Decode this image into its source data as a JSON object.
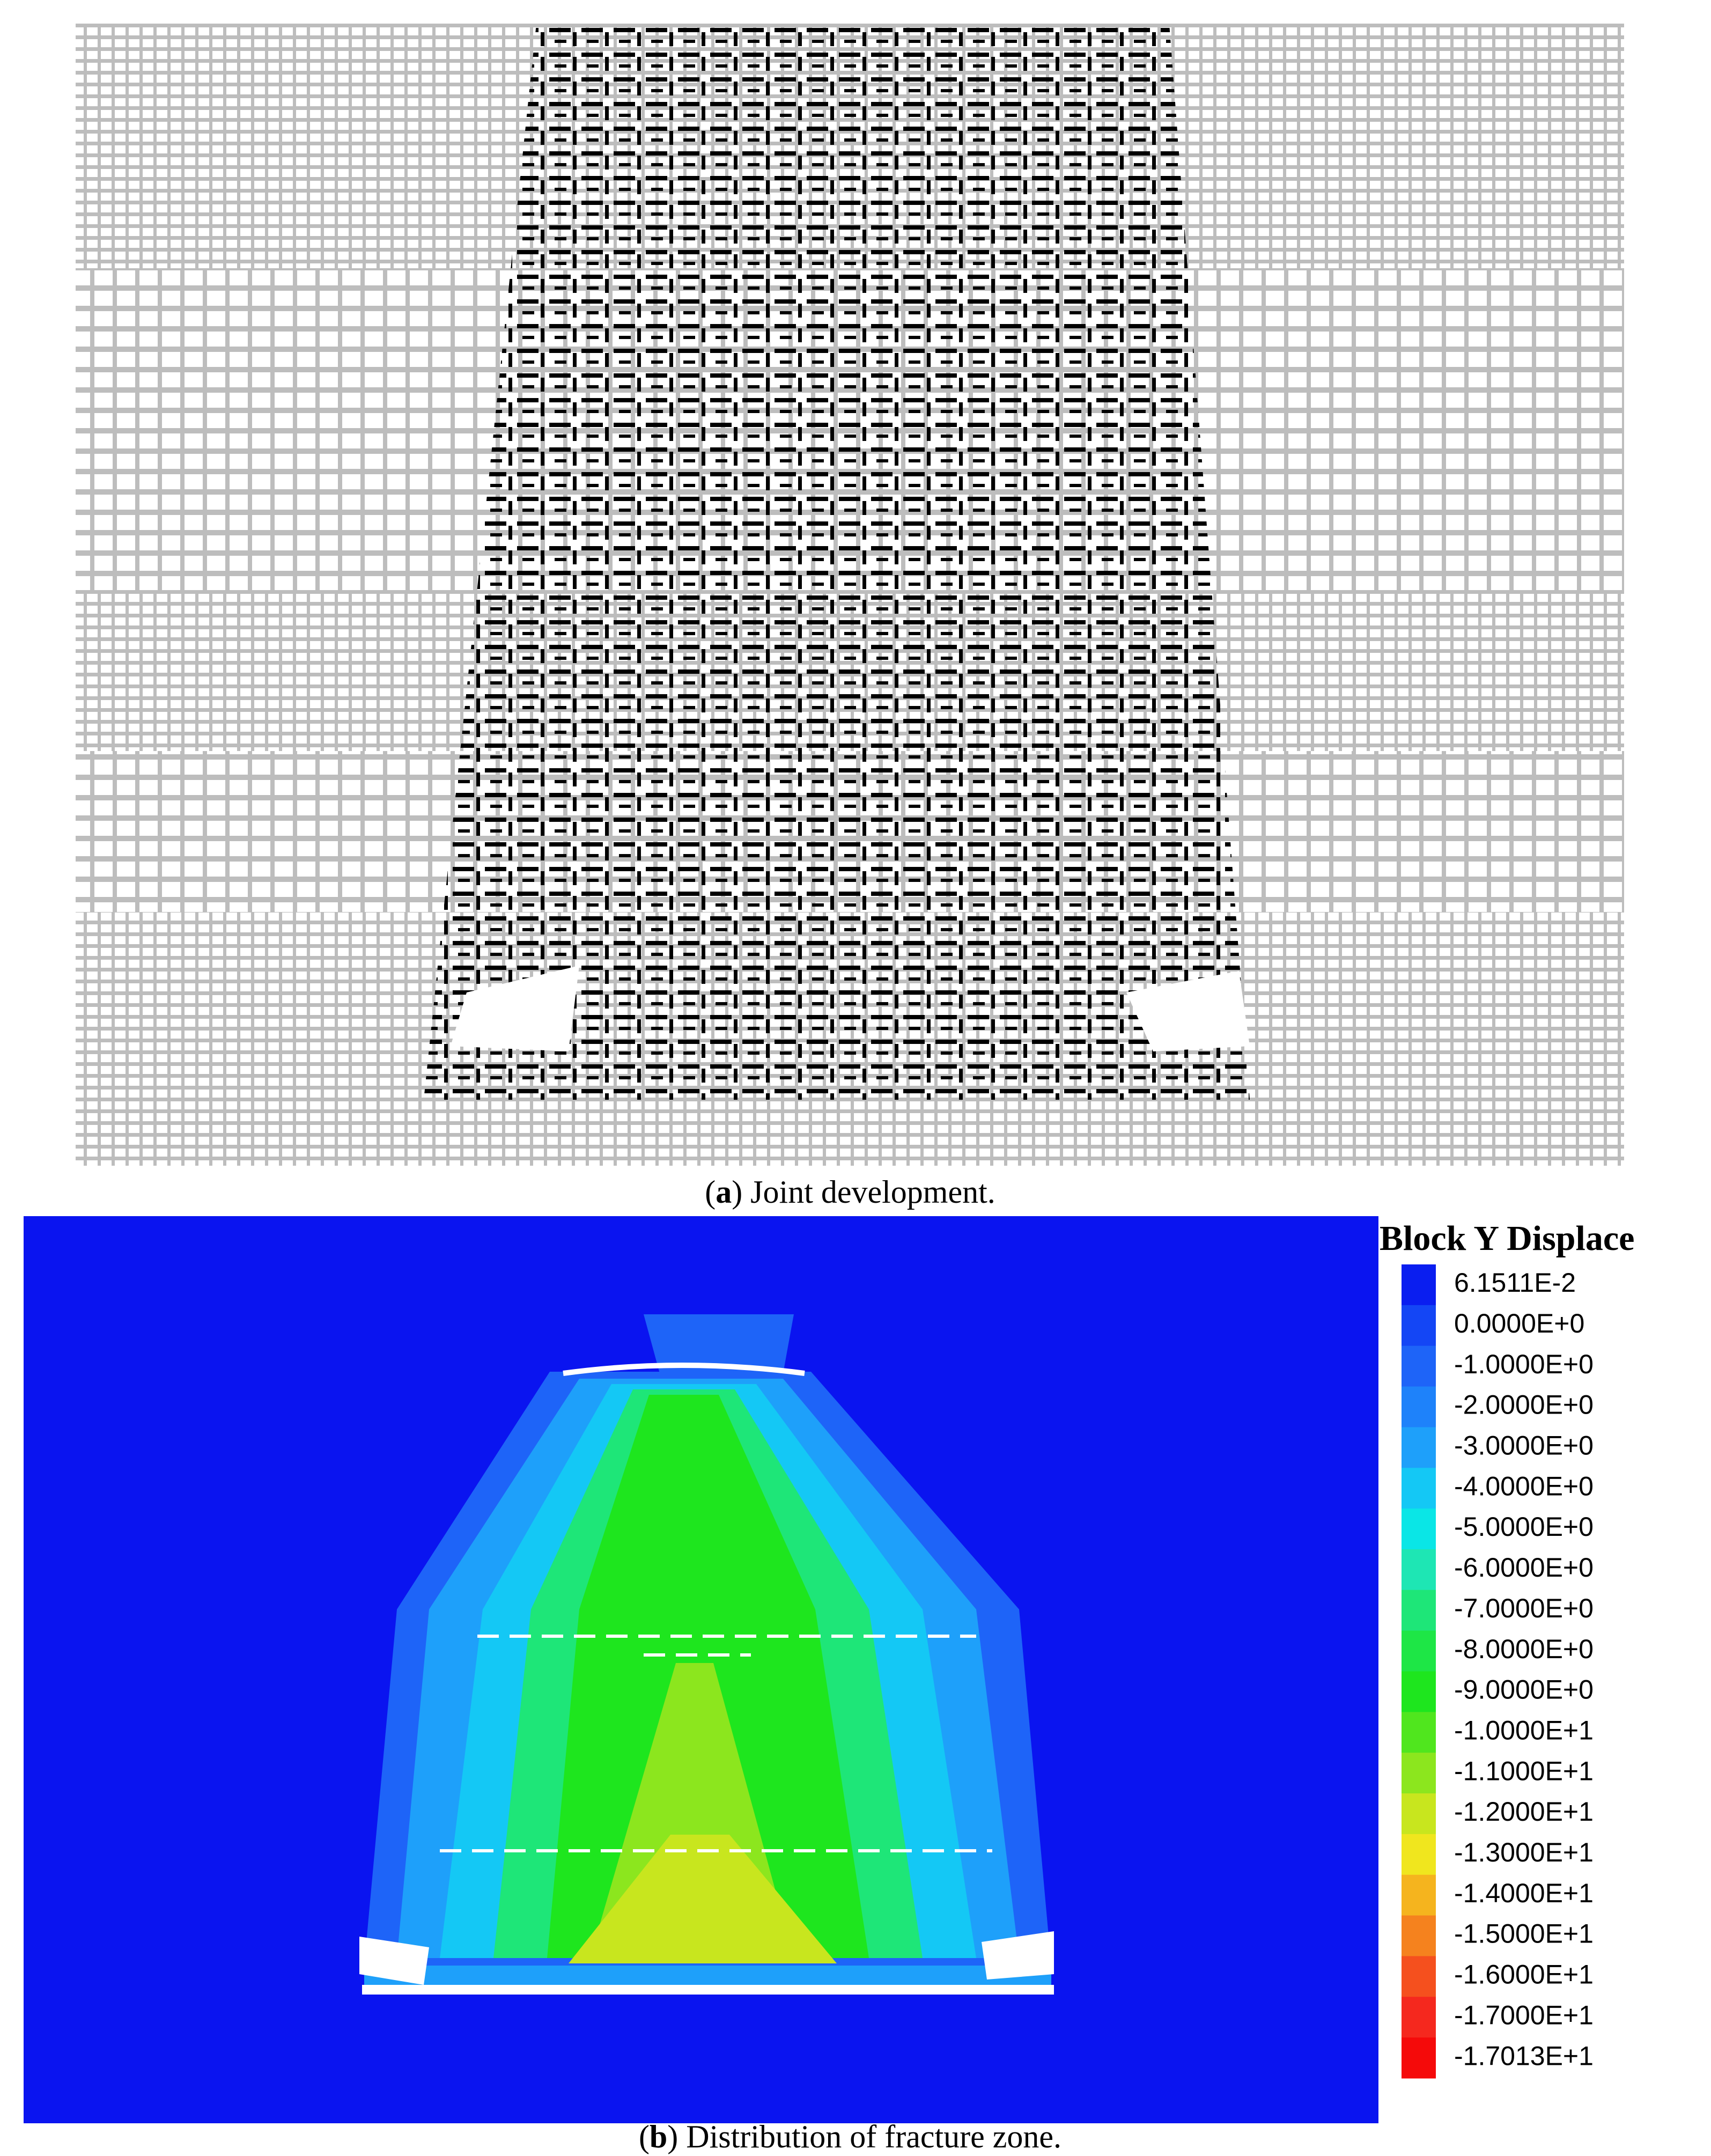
{
  "panels": [
    {
      "caption": {
        "open": "(",
        "label": "a",
        "text": ") Joint development."
      }
    },
    {
      "caption": {
        "open": "(",
        "label": "b",
        "text": ") Distribution of fracture zone."
      },
      "legend": {
        "title": "Block Y Displace",
        "entries": [
          {
            "label": "6.1511E-2",
            "color": "#0a1ef0"
          },
          {
            "label": "0.0000E+0",
            "color": "#1446f5"
          },
          {
            "label": "-1.0000E+0",
            "color": "#1e64f8"
          },
          {
            "label": "-2.0000E+0",
            "color": "#1e82fa"
          },
          {
            "label": "-3.0000E+0",
            "color": "#1ea0fa"
          },
          {
            "label": "-4.0000E+0",
            "color": "#14c8f5"
          },
          {
            "label": "-5.0000E+0",
            "color": "#0ae6e6"
          },
          {
            "label": "-6.0000E+0",
            "color": "#1ee6b4"
          },
          {
            "label": "-7.0000E+0",
            "color": "#1ee678"
          },
          {
            "label": "-8.0000E+0",
            "color": "#1ee646"
          },
          {
            "label": "-9.0000E+0",
            "color": "#1ee61e"
          },
          {
            "label": "-1.0000E+1",
            "color": "#50e61e"
          },
          {
            "label": "-1.1000E+1",
            "color": "#8ce61e"
          },
          {
            "label": "-1.2000E+1",
            "color": "#c8e61e"
          },
          {
            "label": "-1.3000E+1",
            "color": "#f0e61e"
          },
          {
            "label": "-1.4000E+1",
            "color": "#f5b41e"
          },
          {
            "label": "-1.5000E+1",
            "color": "#f5821e"
          },
          {
            "label": "-1.6000E+1",
            "color": "#f5501e"
          },
          {
            "label": "-1.7000E+1",
            "color": "#f5281e"
          },
          {
            "label": "-1.7013E+1",
            "color": "#f50a0a"
          }
        ]
      }
    }
  ]
}
